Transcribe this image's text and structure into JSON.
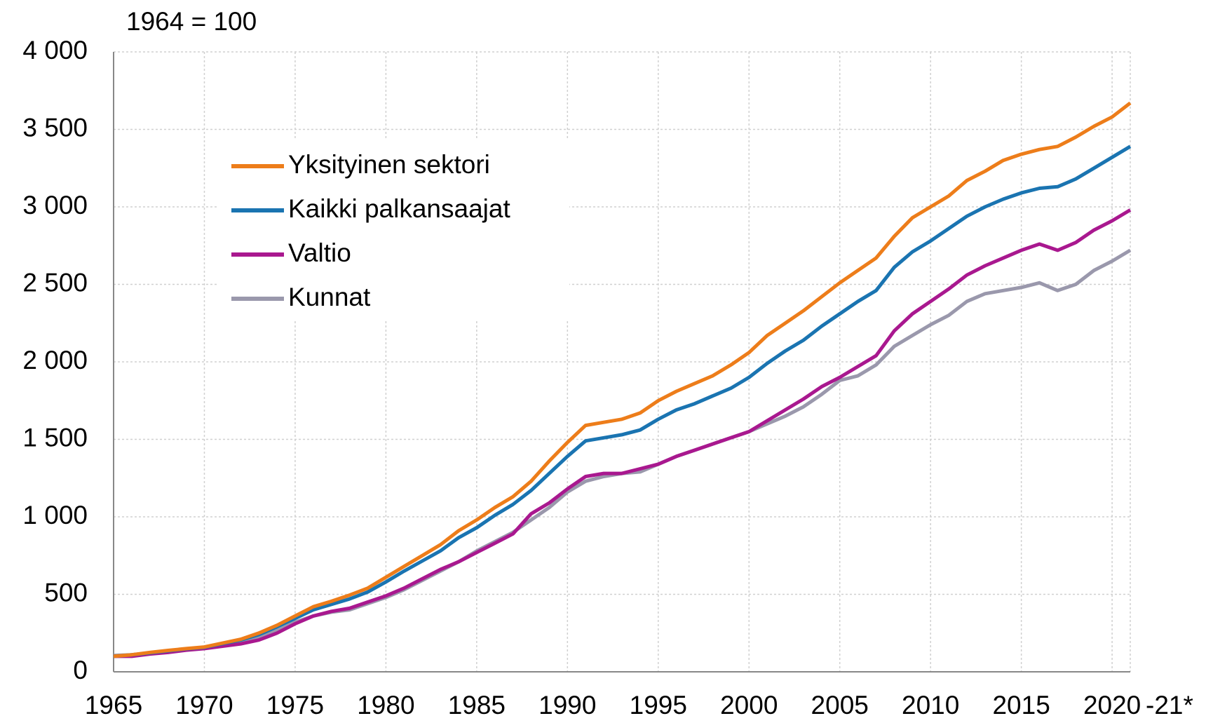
{
  "chart_data": {
    "type": "line",
    "title": "1964 = 100",
    "x": [
      1965,
      1966,
      1967,
      1968,
      1969,
      1970,
      1971,
      1972,
      1973,
      1974,
      1975,
      1976,
      1977,
      1978,
      1979,
      1980,
      1981,
      1982,
      1983,
      1984,
      1985,
      1986,
      1987,
      1988,
      1989,
      1990,
      1991,
      1992,
      1993,
      1994,
      1995,
      1996,
      1997,
      1998,
      1999,
      2000,
      2001,
      2002,
      2003,
      2004,
      2005,
      2006,
      2007,
      2008,
      2009,
      2010,
      2011,
      2012,
      2013,
      2014,
      2015,
      2016,
      2017,
      2018,
      2019,
      2020,
      2021
    ],
    "series": [
      {
        "name": "Yksityinen sektori",
        "color": "#ed7d1a",
        "values": [
          100,
          110,
          125,
          138,
          150,
          160,
          185,
          210,
          250,
          300,
          360,
          420,
          455,
          495,
          540,
          610,
          680,
          750,
          820,
          910,
          980,
          1060,
          1130,
          1230,
          1360,
          1480,
          1590,
          1610,
          1630,
          1670,
          1750,
          1810,
          1860,
          1910,
          1980,
          2060,
          2170,
          2250,
          2330,
          2420,
          2510,
          2590,
          2670,
          2810,
          2930,
          3000,
          3070,
          3170,
          3230,
          3300,
          3340,
          3370,
          3390,
          3450,
          3520,
          3580,
          3670
        ]
      },
      {
        "name": "Kaikki palkansaajat",
        "color": "#1a74b1",
        "values": [
          100,
          110,
          122,
          135,
          148,
          158,
          182,
          205,
          240,
          290,
          345,
          400,
          435,
          470,
          515,
          580,
          650,
          715,
          780,
          865,
          930,
          1010,
          1080,
          1170,
          1280,
          1390,
          1490,
          1510,
          1530,
          1560,
          1630,
          1690,
          1730,
          1780,
          1830,
          1900,
          1990,
          2070,
          2140,
          2230,
          2310,
          2390,
          2460,
          2610,
          2710,
          2780,
          2860,
          2940,
          3000,
          3050,
          3090,
          3120,
          3130,
          3180,
          3250,
          3320,
          3390
        ]
      },
      {
        "name": "Valtio",
        "color": "#a9188f",
        "values": [
          100,
          100,
          115,
          125,
          140,
          150,
          165,
          180,
          205,
          250,
          310,
          360,
          390,
          410,
          450,
          490,
          540,
          600,
          660,
          710,
          770,
          830,
          890,
          1020,
          1090,
          1180,
          1260,
          1280,
          1280,
          1310,
          1340,
          1390,
          1430,
          1470,
          1510,
          1550,
          1620,
          1690,
          1760,
          1840,
          1900,
          1970,
          2040,
          2200,
          2310,
          2390,
          2470,
          2560,
          2620,
          2670,
          2720,
          2760,
          2720,
          2770,
          2850,
          2910,
          2980
        ]
      },
      {
        "name": "Kunnat",
        "color": "#9a98ac",
        "values": [
          105,
          110,
          120,
          132,
          145,
          152,
          170,
          190,
          220,
          265,
          320,
          360,
          385,
          400,
          440,
          480,
          530,
          590,
          650,
          710,
          780,
          840,
          900,
          980,
          1060,
          1160,
          1230,
          1260,
          1280,
          1290,
          1340,
          1390,
          1430,
          1470,
          1510,
          1550,
          1600,
          1650,
          1710,
          1790,
          1880,
          1910,
          1980,
          2100,
          2170,
          2240,
          2300,
          2390,
          2440,
          2460,
          2480,
          2510,
          2460,
          2500,
          2590,
          2650,
          2720
        ]
      }
    ],
    "xlim": [
      1965,
      2021
    ],
    "xticks": [
      1965,
      1970,
      1975,
      1980,
      1985,
      1990,
      1995,
      2000,
      2005,
      2010,
      2015,
      2020,
      {
        "value": 2021,
        "label": "-21*"
      }
    ],
    "ylim": [
      0,
      4000
    ],
    "yticks": [
      {
        "value": 0,
        "label": "0"
      },
      {
        "value": 500,
        "label": "500"
      },
      {
        "value": 1000,
        "label": "1 000"
      },
      {
        "value": 1500,
        "label": "1 500"
      },
      {
        "value": 2000,
        "label": "2 000"
      },
      {
        "value": 2500,
        "label": "2 500"
      },
      {
        "value": 3000,
        "label": "3 000"
      },
      {
        "value": 3500,
        "label": "3 500"
      },
      {
        "value": 4000,
        "label": "4 000"
      }
    ],
    "grid": true,
    "legend": "upper-left"
  }
}
